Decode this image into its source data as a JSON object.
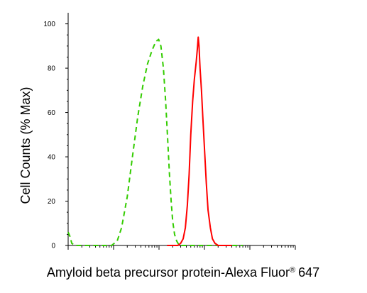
{
  "chart_data": {
    "type": "line",
    "title": "",
    "xlabel": "Amyloid beta precursor protein-Alexa Fluor",
    "xlabel_superscript": "®",
    "xlabel_suffix": "647",
    "ylabel": "Cell Counts (% Max)",
    "x_scale": "log",
    "xlim": [
      0.1,
      10000
    ],
    "ylim": [
      0,
      105
    ],
    "yticks": [
      0,
      20,
      40,
      60,
      80,
      100
    ],
    "ytick_labels": [
      "0",
      "20",
      "40",
      "60",
      "80",
      "100"
    ],
    "grid": false,
    "legend": "none",
    "series": [
      {
        "color": "#33cc00",
        "style": "dashed",
        "points": [
          [
            0.1,
            6
          ],
          [
            0.11,
            4
          ],
          [
            0.12,
            1
          ],
          [
            0.14,
            0
          ],
          [
            0.3,
            0
          ],
          [
            0.45,
            0
          ],
          [
            0.9,
            0
          ],
          [
            1.2,
            2
          ],
          [
            1.5,
            8
          ],
          [
            2.0,
            22
          ],
          [
            2.6,
            40
          ],
          [
            3.4,
            58
          ],
          [
            4.4,
            72
          ],
          [
            5.6,
            82
          ],
          [
            7.0,
            88
          ],
          [
            8.5,
            92
          ],
          [
            9.8,
            93
          ],
          [
            11,
            90
          ],
          [
            12.5,
            80
          ],
          [
            14,
            65
          ],
          [
            15.5,
            48
          ],
          [
            17,
            32
          ],
          [
            18.5,
            20
          ],
          [
            20,
            11
          ],
          [
            22,
            5
          ],
          [
            24.5,
            2
          ],
          [
            28,
            0
          ],
          [
            35,
            0
          ],
          [
            50,
            0
          ],
          [
            80,
            0
          ],
          [
            200,
            0
          ],
          [
            700,
            0
          ]
        ]
      },
      {
        "color": "#ff0000",
        "style": "solid",
        "points": [
          [
            15,
            0
          ],
          [
            22,
            0
          ],
          [
            26,
            0
          ],
          [
            30,
            1
          ],
          [
            34,
            3
          ],
          [
            38,
            8
          ],
          [
            42,
            18
          ],
          [
            46,
            32
          ],
          [
            50,
            50
          ],
          [
            55,
            65
          ],
          [
            60,
            75
          ],
          [
            66,
            83
          ],
          [
            70,
            89
          ],
          [
            73,
            94
          ],
          [
            76,
            90
          ],
          [
            80,
            80
          ],
          [
            86,
            70
          ],
          [
            92,
            58
          ],
          [
            100,
            44
          ],
          [
            110,
            28
          ],
          [
            120,
            16
          ],
          [
            135,
            8
          ],
          [
            150,
            3
          ],
          [
            170,
            1
          ],
          [
            200,
            0
          ],
          [
            400,
            0
          ]
        ]
      }
    ]
  }
}
